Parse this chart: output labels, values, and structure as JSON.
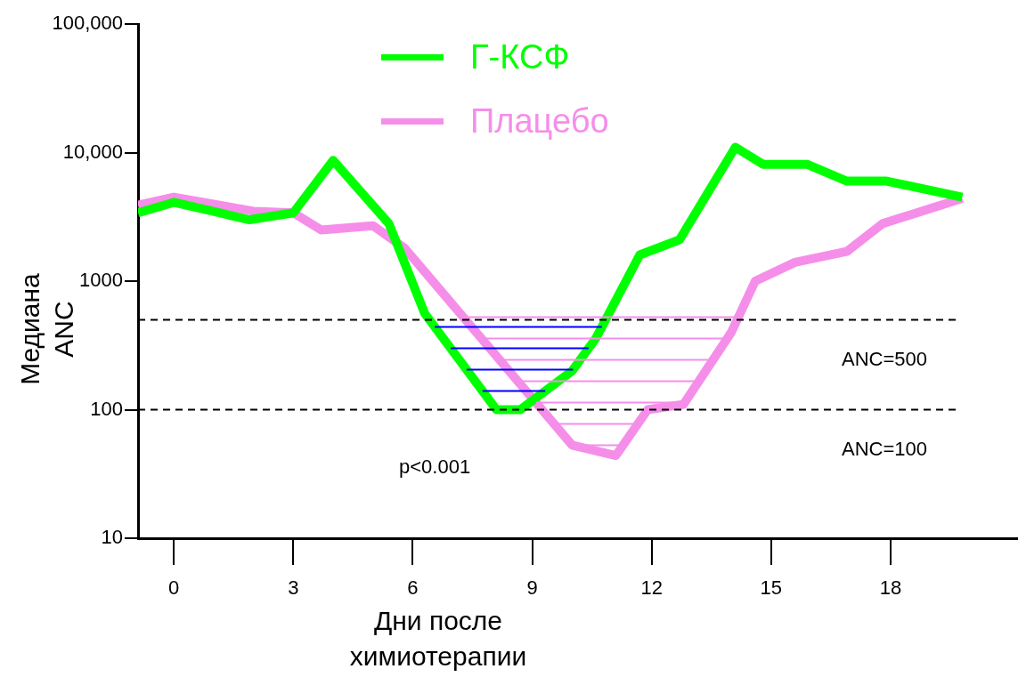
{
  "chart_data": {
    "type": "line",
    "xlabel": "Дни после химиотерапии",
    "ylabel": "Медиана ANC",
    "log": "y",
    "xlim": [
      -0.9,
      21.2
    ],
    "xticks": [
      0,
      3,
      6,
      9,
      12,
      15,
      18
    ],
    "ylim": [
      10,
      100000
    ],
    "yticks": [
      10,
      100,
      1000,
      {
        "value": 10000,
        "label": "10,000"
      },
      {
        "value": 100000,
        "label": "100,000"
      }
    ],
    "grid": false,
    "legend": "top",
    "marker": "none",
    "line_style": "solid",
    "ref_lines": [
      {
        "axis": "y",
        "value": 500,
        "label": "ANC=500",
        "color": "#000000",
        "line_style": "dashed"
      },
      {
        "axis": "y",
        "value": 100,
        "label": "ANC=100",
        "color": "#000000",
        "line_style": "dashed"
      }
    ],
    "annotations": [
      "p<0.001"
    ],
    "series": [
      {
        "name": "Г-КСФ",
        "color": "#00ff00",
        "x": [
          -0.9,
          0,
          1.9,
          3,
          4,
          5.4,
          6.3,
          8.1,
          8.7,
          10,
          10.6,
          11.7,
          12.7,
          14.1,
          14.8,
          15.9,
          16.9,
          17.9,
          19.8
        ],
        "values": [
          3400,
          4100,
          3000,
          3400,
          8700,
          2800,
          560,
          100,
          100,
          200,
          360,
          1600,
          2100,
          11000,
          8100,
          8100,
          6000,
          6000,
          4500
        ]
      },
      {
        "name": "Плацебо",
        "color": "#f58ee9",
        "x": [
          -0.9,
          0,
          2,
          3,
          3.7,
          5,
          5.8,
          10,
          11.1,
          11.9,
          12.8,
          14,
          14.6,
          15.6,
          16.9,
          17.8,
          19.8
        ],
        "values": [
          3900,
          4500,
          3500,
          3400,
          2500,
          2700,
          1800,
          53,
          44,
          100,
          110,
          400,
          1000,
          1400,
          1700,
          2800,
          4400
        ]
      }
    ]
  }
}
